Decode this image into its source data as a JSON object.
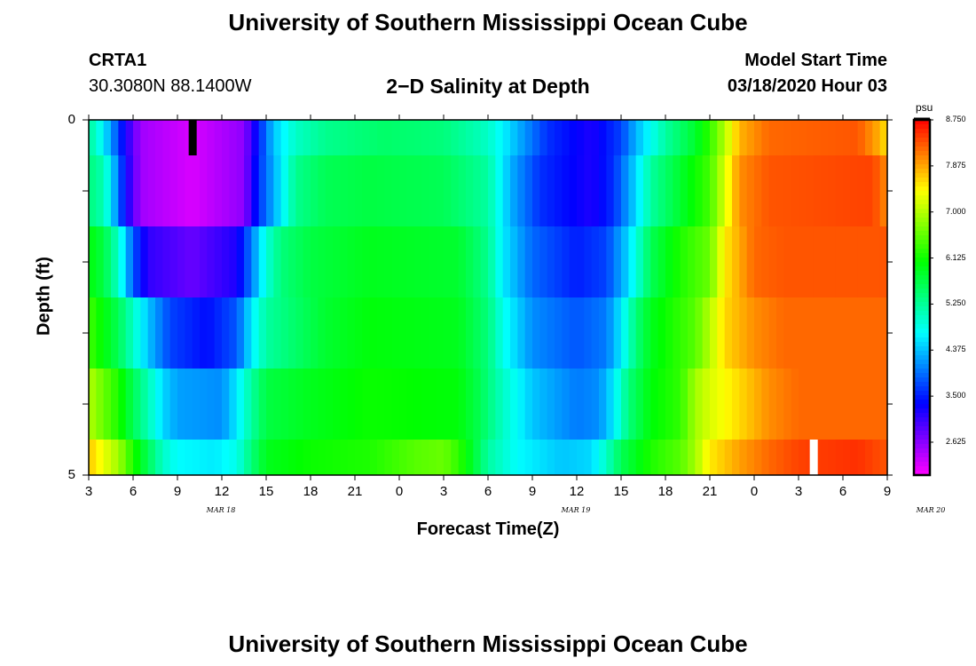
{
  "page": {
    "title": "University of Southern Mississippi Ocean Cube",
    "footer_title": "University of Southern Mississippi Ocean Cube"
  },
  "header": {
    "station": "CRTA1",
    "location": "30.3080N 88.1400W",
    "plot_title": "2−D Salinity at Depth",
    "model_label": "Model Start Time",
    "model_time": "03/18/2020 Hour 03"
  },
  "colors": {
    "background": "#ffffff",
    "frame": "#000000",
    "marker_black": "#000000",
    "marker_white": "#ffffff"
  },
  "chart_data": {
    "type": "heatmap",
    "title": "2−D Salinity at Depth",
    "xlabel": "Forecast Time(Z)",
    "ylabel": "Depth (ft)",
    "y_tick_labels": [
      "0",
      "5"
    ],
    "ylim": [
      0,
      5
    ],
    "x_tick_labels": [
      "3",
      "6",
      "9",
      "12",
      "15",
      "18",
      "21",
      "0",
      "3",
      "6",
      "9",
      "12",
      "15",
      "18",
      "21",
      "0",
      "3",
      "6",
      "9"
    ],
    "day_labels": [
      "MAR 18",
      "MAR 19",
      "MAR 20"
    ],
    "colorbar": {
      "unit": "psu",
      "tick_labels": [
        "8.750",
        "7.875",
        "7.000",
        "6.125",
        "5.250",
        "4.375",
        "3.500",
        "2.625"
      ],
      "range": [
        2.0,
        8.75
      ]
    },
    "hours_start": 3,
    "hours_end": 57,
    "depth_rows": [
      0.25,
      1.0,
      2.0,
      3.0,
      4.0,
      4.75
    ],
    "depth_bounds": [
      0,
      0.5,
      1.5,
      2.5,
      3.5,
      4.5,
      5
    ],
    "row_profiles": [
      [
        [
          3,
          5.2
        ],
        [
          3.5,
          5.0
        ],
        [
          4.5,
          4.2
        ],
        [
          5.5,
          3.2
        ],
        [
          6.5,
          2.5
        ],
        [
          10,
          2.2
        ],
        [
          13.5,
          2.6
        ],
        [
          14.5,
          3.5
        ],
        [
          15.5,
          4.4
        ],
        [
          17,
          5.0
        ],
        [
          19,
          5.3
        ],
        [
          23,
          5.5
        ],
        [
          27,
          5.4
        ],
        [
          30,
          5.0
        ],
        [
          32,
          4.3
        ],
        [
          34,
          3.6
        ],
        [
          37,
          3.2
        ],
        [
          39,
          3.7
        ],
        [
          40,
          4.3
        ],
        [
          42,
          5.2
        ],
        [
          44,
          5.8
        ],
        [
          45,
          6.3
        ],
        [
          46,
          7.0
        ],
        [
          47,
          7.8
        ],
        [
          49,
          8.2
        ],
        [
          55,
          8.3
        ],
        [
          56.5,
          7.8
        ],
        [
          57,
          7.5
        ]
      ],
      [
        [
          3,
          5.4
        ],
        [
          4,
          5.1
        ],
        [
          4.5,
          4.6
        ],
        [
          5.5,
          3.3
        ],
        [
          6.5,
          2.5
        ],
        [
          10,
          2.2
        ],
        [
          13.5,
          2.6
        ],
        [
          14.5,
          3.6
        ],
        [
          16,
          4.6
        ],
        [
          17,
          5.3
        ],
        [
          19,
          5.6
        ],
        [
          22,
          5.7
        ],
        [
          27,
          5.6
        ],
        [
          30,
          5.2
        ],
        [
          31.5,
          4.3
        ],
        [
          33.5,
          3.6
        ],
        [
          37,
          3.2
        ],
        [
          38.5,
          3.6
        ],
        [
          40,
          4.5
        ],
        [
          41,
          5.2
        ],
        [
          43,
          5.8
        ],
        [
          45,
          6.4
        ],
        [
          46,
          7.2
        ],
        [
          47,
          8.0
        ],
        [
          49,
          8.3
        ],
        [
          56,
          8.4
        ],
        [
          57,
          8.0
        ]
      ],
      [
        [
          3,
          6.0
        ],
        [
          4,
          5.7
        ],
        [
          5,
          5.0
        ],
        [
          6,
          3.8
        ],
        [
          7,
          3.1
        ],
        [
          10,
          2.8
        ],
        [
          13,
          3.2
        ],
        [
          14,
          4.0
        ],
        [
          15,
          4.9
        ],
        [
          16,
          5.4
        ],
        [
          18,
          5.7
        ],
        [
          22,
          5.9
        ],
        [
          28,
          5.8
        ],
        [
          30,
          5.3
        ],
        [
          31,
          4.6
        ],
        [
          33,
          3.9
        ],
        [
          36,
          3.5
        ],
        [
          38,
          3.7
        ],
        [
          39.5,
          4.5
        ],
        [
          41,
          5.6
        ],
        [
          43,
          6.2
        ],
        [
          45,
          6.6
        ],
        [
          46,
          7.5
        ],
        [
          48,
          8.2
        ],
        [
          50,
          8.3
        ],
        [
          57,
          8.3
        ]
      ],
      [
        [
          3,
          6.4
        ],
        [
          4,
          6.0
        ],
        [
          5,
          5.6
        ],
        [
          6,
          5.0
        ],
        [
          7,
          4.4
        ],
        [
          8.5,
          3.7
        ],
        [
          11,
          3.4
        ],
        [
          13,
          3.8
        ],
        [
          14,
          4.6
        ],
        [
          15,
          5.2
        ],
        [
          17,
          5.5
        ],
        [
          19,
          5.8
        ],
        [
          22,
          6.0
        ],
        [
          28,
          5.9
        ],
        [
          30,
          5.4
        ],
        [
          31,
          4.8
        ],
        [
          33,
          4.1
        ],
        [
          36,
          3.8
        ],
        [
          38,
          4.0
        ],
        [
          39,
          4.6
        ],
        [
          40,
          5.4
        ],
        [
          41,
          5.9
        ],
        [
          44,
          6.5
        ],
        [
          45,
          7.0
        ],
        [
          46,
          7.6
        ],
        [
          48,
          8.0
        ],
        [
          50,
          8.2
        ],
        [
          57,
          8.2
        ]
      ],
      [
        [
          3,
          7.0
        ],
        [
          4,
          6.6
        ],
        [
          5,
          6.2
        ],
        [
          6,
          5.6
        ],
        [
          7,
          5.1
        ],
        [
          8,
          4.5
        ],
        [
          9,
          4.2
        ],
        [
          12,
          4.1
        ],
        [
          13,
          4.6
        ],
        [
          14,
          5.2
        ],
        [
          15,
          5.7
        ],
        [
          18,
          5.9
        ],
        [
          22,
          6.1
        ],
        [
          28,
          6.0
        ],
        [
          29.5,
          5.6
        ],
        [
          31,
          5.0
        ],
        [
          33,
          4.4
        ],
        [
          36,
          4.0
        ],
        [
          37.5,
          4.1
        ],
        [
          38.5,
          4.6
        ],
        [
          39.5,
          5.4
        ],
        [
          41,
          6.0
        ],
        [
          43,
          6.3
        ],
        [
          44,
          6.9
        ],
        [
          45,
          7.2
        ],
        [
          47,
          7.6
        ],
        [
          49,
          8.0
        ],
        [
          51,
          8.2
        ],
        [
          57,
          8.2
        ]
      ],
      [
        [
          3,
          7.7
        ],
        [
          4,
          7.3
        ],
        [
          5,
          6.9
        ],
        [
          6,
          6.2
        ],
        [
          7,
          5.6
        ],
        [
          8,
          5.0
        ],
        [
          9,
          4.7
        ],
        [
          11.5,
          4.6
        ],
        [
          13,
          4.8
        ],
        [
          14,
          5.4
        ],
        [
          15,
          5.9
        ],
        [
          18,
          6.1
        ],
        [
          22,
          6.2
        ],
        [
          25,
          6.5
        ],
        [
          27,
          6.6
        ],
        [
          28,
          6.3
        ],
        [
          29,
          5.8
        ],
        [
          30,
          5.2
        ],
        [
          32,
          4.7
        ],
        [
          35,
          4.4
        ],
        [
          37,
          4.5
        ],
        [
          38,
          5.0
        ],
        [
          39,
          5.6
        ],
        [
          41,
          6.2
        ],
        [
          43,
          6.5
        ],
        [
          44,
          6.9
        ],
        [
          45,
          7.5
        ],
        [
          47,
          7.9
        ],
        [
          49,
          8.2
        ],
        [
          51,
          8.4
        ],
        [
          55,
          8.5
        ],
        [
          57,
          8.3
        ]
      ]
    ],
    "markers": [
      {
        "hour": 10,
        "row": 0,
        "color": "#000000"
      },
      {
        "hour": 52,
        "row": 5,
        "color": "#ffffff"
      }
    ]
  }
}
